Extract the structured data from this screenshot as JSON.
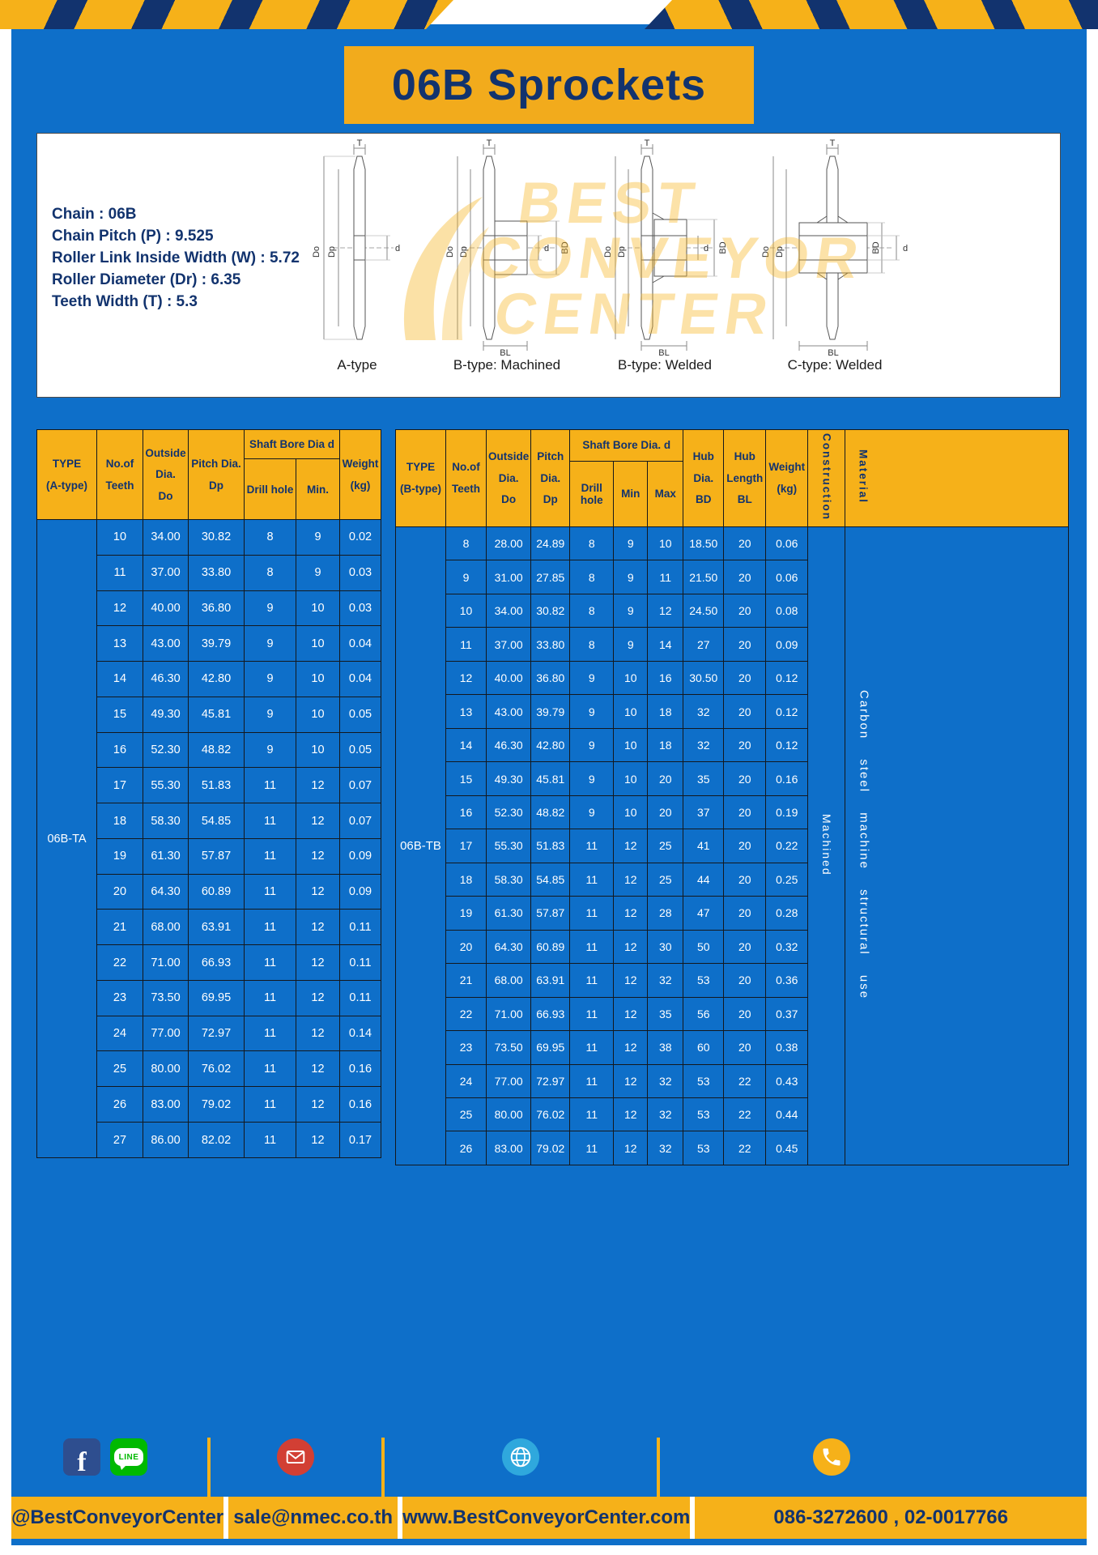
{
  "title": "06B Sprockets",
  "specs": {
    "lines": [
      "Chain : 06B",
      "Chain Pitch (P) : 9.525",
      "Roller Link Inside Width (W) : 5.72",
      "Roller Diameter (Dr) : 6.35",
      "Teeth Width (T) : 5.3"
    ]
  },
  "watermark": {
    "lines": [
      "BEST",
      "CONVEYOR",
      "CENTER"
    ]
  },
  "diagrams": [
    {
      "label": "A-type",
      "dims": [
        "T",
        "Do",
        "Dp",
        "d"
      ]
    },
    {
      "label": "B-type: Machined",
      "dims": [
        "T",
        "Do",
        "Dp",
        "d",
        "BD",
        "BL"
      ]
    },
    {
      "label": "B-type: Welded",
      "dims": [
        "T",
        "Do",
        "Dp",
        "d",
        "BD",
        "BL"
      ]
    },
    {
      "label": "C-type: Welded",
      "dims": [
        "T",
        "Do",
        "Dp",
        "d",
        "BD",
        "BL"
      ]
    }
  ],
  "table_a": {
    "header": {
      "type": [
        "TYPE",
        "(A-type)"
      ],
      "teeth": [
        "No.of",
        "Teeth"
      ],
      "outside": [
        "Outside",
        "Dia.",
        "Do"
      ],
      "pitch": [
        "Pitch Dia.",
        "Dp"
      ],
      "bore_group": "Shaft Bore Dia d",
      "drill": "Drill hole",
      "min": "Min.",
      "weight": [
        "Weight",
        "(kg)"
      ]
    },
    "row_label": "06B-TA",
    "rows": [
      [
        "10",
        "34.00",
        "30.82",
        "8",
        "9",
        "0.02"
      ],
      [
        "11",
        "37.00",
        "33.80",
        "8",
        "9",
        "0.03"
      ],
      [
        "12",
        "40.00",
        "36.80",
        "9",
        "10",
        "0.03"
      ],
      [
        "13",
        "43.00",
        "39.79",
        "9",
        "10",
        "0.04"
      ],
      [
        "14",
        "46.30",
        "42.80",
        "9",
        "10",
        "0.04"
      ],
      [
        "15",
        "49.30",
        "45.81",
        "9",
        "10",
        "0.05"
      ],
      [
        "16",
        "52.30",
        "48.82",
        "9",
        "10",
        "0.05"
      ],
      [
        "17",
        "55.30",
        "51.83",
        "11",
        "12",
        "0.07"
      ],
      [
        "18",
        "58.30",
        "54.85",
        "11",
        "12",
        "0.07"
      ],
      [
        "19",
        "61.30",
        "57.87",
        "11",
        "12",
        "0.09"
      ],
      [
        "20",
        "64.30",
        "60.89",
        "11",
        "12",
        "0.09"
      ],
      [
        "21",
        "68.00",
        "63.91",
        "11",
        "12",
        "0.11"
      ],
      [
        "22",
        "71.00",
        "66.93",
        "11",
        "12",
        "0.11"
      ],
      [
        "23",
        "73.50",
        "69.95",
        "11",
        "12",
        "0.11"
      ],
      [
        "24",
        "77.00",
        "72.97",
        "11",
        "12",
        "0.14"
      ],
      [
        "25",
        "80.00",
        "76.02",
        "11",
        "12",
        "0.16"
      ],
      [
        "26",
        "83.00",
        "79.02",
        "11",
        "12",
        "0.16"
      ],
      [
        "27",
        "86.00",
        "82.02",
        "11",
        "12",
        "0.17"
      ]
    ]
  },
  "table_b": {
    "header": {
      "type": [
        "TYPE",
        "(B-type)"
      ],
      "teeth": [
        "No.of",
        "Teeth"
      ],
      "outside": [
        "Outside",
        "Dia.",
        "Do"
      ],
      "pitch": [
        "Pitch",
        "Dia.",
        "Dp"
      ],
      "bore_group": "Shaft Bore Dia.  d",
      "drill": "Drill hole",
      "min": "Min",
      "max": "Max",
      "hub_dia": [
        "Hub",
        "Dia.",
        "BD"
      ],
      "hub_len": [
        "Hub",
        "Length",
        "BL"
      ],
      "weight": [
        "Weight",
        "(kg)"
      ],
      "construction": "Construction",
      "material": "Material"
    },
    "row_label": "06B-TB",
    "construction": "Machined",
    "material": "Carbon steel machine structural use",
    "rows": [
      [
        "8",
        "28.00",
        "24.89",
        "8",
        "9",
        "10",
        "18.50",
        "20",
        "0.06"
      ],
      [
        "9",
        "31.00",
        "27.85",
        "8",
        "9",
        "11",
        "21.50",
        "20",
        "0.06"
      ],
      [
        "10",
        "34.00",
        "30.82",
        "8",
        "9",
        "12",
        "24.50",
        "20",
        "0.08"
      ],
      [
        "11",
        "37.00",
        "33.80",
        "8",
        "9",
        "14",
        "27",
        "20",
        "0.09"
      ],
      [
        "12",
        "40.00",
        "36.80",
        "9",
        "10",
        "16",
        "30.50",
        "20",
        "0.12"
      ],
      [
        "13",
        "43.00",
        "39.79",
        "9",
        "10",
        "18",
        "32",
        "20",
        "0.12"
      ],
      [
        "14",
        "46.30",
        "42.80",
        "9",
        "10",
        "18",
        "32",
        "20",
        "0.12"
      ],
      [
        "15",
        "49.30",
        "45.81",
        "9",
        "10",
        "20",
        "35",
        "20",
        "0.16"
      ],
      [
        "16",
        "52.30",
        "48.82",
        "9",
        "10",
        "20",
        "37",
        "20",
        "0.19"
      ],
      [
        "17",
        "55.30",
        "51.83",
        "11",
        "12",
        "25",
        "41",
        "20",
        "0.22"
      ],
      [
        "18",
        "58.30",
        "54.85",
        "11",
        "12",
        "25",
        "44",
        "20",
        "0.25"
      ],
      [
        "19",
        "61.30",
        "57.87",
        "11",
        "12",
        "28",
        "47",
        "20",
        "0.28"
      ],
      [
        "20",
        "64.30",
        "60.89",
        "11",
        "12",
        "30",
        "50",
        "20",
        "0.32"
      ],
      [
        "21",
        "68.00",
        "63.91",
        "11",
        "12",
        "32",
        "53",
        "20",
        "0.36"
      ],
      [
        "22",
        "71.00",
        "66.93",
        "11",
        "12",
        "35",
        "56",
        "20",
        "0.37"
      ],
      [
        "23",
        "73.50",
        "69.95",
        "11",
        "12",
        "38",
        "60",
        "20",
        "0.38"
      ],
      [
        "24",
        "77.00",
        "72.97",
        "11",
        "12",
        "32",
        "53",
        "22",
        "0.43"
      ],
      [
        "25",
        "80.00",
        "76.02",
        "11",
        "12",
        "32",
        "53",
        "22",
        "0.44"
      ],
      [
        "26",
        "83.00",
        "79.02",
        "11",
        "12",
        "32",
        "53",
        "22",
        "0.45"
      ]
    ]
  },
  "footer": {
    "social_handle": "@BestConveyorCenter",
    "email": "sale@nmec.co.th",
    "website": "www.BestConveyorCenter.com",
    "phone": "086-3272600 , 02-0017766",
    "icons": {
      "facebook": "f",
      "line": "LINE"
    }
  },
  "colors": {
    "page_blue": "#0e6fc9",
    "navy": "#12336e",
    "yellow": "#f6b119",
    "mail_red": "#d23f34",
    "line_green": "#00b900",
    "globe_blue": "#2fa8dd"
  }
}
